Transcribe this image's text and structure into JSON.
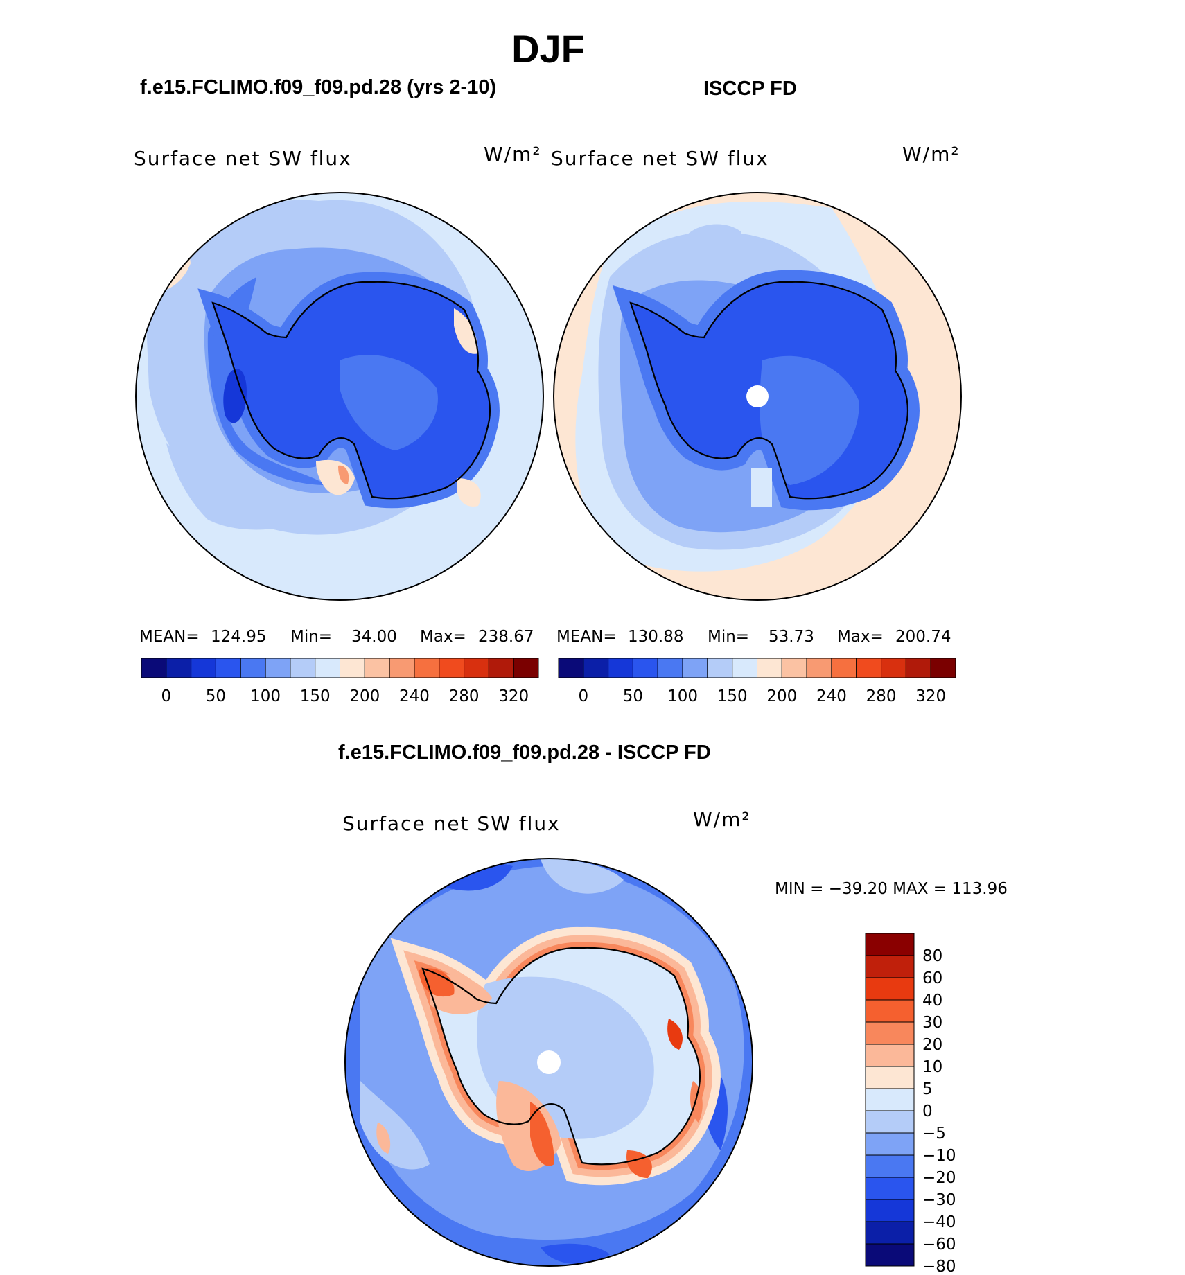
{
  "title": "DJF",
  "panels": [
    {
      "heading": "f.e15.FCLIMO.f09_f09.pd.28 (yrs 2-10)",
      "variable": "Surface net SW flux",
      "units": "W/m²",
      "mean_label": "MEAN=",
      "mean": "124.95",
      "min_label": "Min=",
      "min": "34.00",
      "max_label": "Max=",
      "max": "238.67"
    },
    {
      "heading": "ISCCP FD",
      "variable": "Surface net SW flux",
      "units": "W/m²",
      "mean_label": "MEAN=",
      "mean": "130.88",
      "min_label": "Min=",
      "min": "53.73",
      "max_label": "Max=",
      "max": "200.74"
    }
  ],
  "diff_panel": {
    "heading": "f.e15.FCLIMO.f09_f09.pd.28 - ISCCP FD",
    "variable": "Surface net SW flux",
    "units": "W/m²",
    "minmax": "MIN = −39.20 MAX = 113.96"
  },
  "chart_data": [
    {
      "type": "heatmap",
      "projection": "south-polar-stereographic",
      "title": "Surface net SW flux",
      "case": "f.e15.FCLIMO.f09_f09.pd.28 (yrs 2-10)",
      "units": "W/m2",
      "stats": {
        "mean": 124.95,
        "min": 34.0,
        "max": 238.67
      },
      "colorbar": {
        "orientation": "horizontal",
        "tick_labels": [
          "0",
          "50",
          "100",
          "150",
          "200",
          "240",
          "280",
          "320"
        ]
      }
    },
    {
      "type": "heatmap",
      "projection": "south-polar-stereographic",
      "title": "Surface net SW flux",
      "case": "ISCCP FD",
      "units": "W/m2",
      "stats": {
        "mean": 130.88,
        "min": 53.73,
        "max": 200.74
      },
      "colorbar": {
        "orientation": "horizontal",
        "tick_labels": [
          "0",
          "50",
          "100",
          "150",
          "200",
          "240",
          "280",
          "320"
        ]
      }
    },
    {
      "type": "heatmap",
      "projection": "south-polar-stereographic",
      "title": "Surface net SW flux",
      "case": "f.e15.FCLIMO.f09_f09.pd.28 - ISCCP FD",
      "units": "W/m2",
      "stats": {
        "min": -39.2,
        "max": 113.96
      },
      "colorbar": {
        "orientation": "vertical",
        "tick_labels": [
          "80",
          "60",
          "40",
          "30",
          "20",
          "10",
          "5",
          "0",
          "−5",
          "−10",
          "−20",
          "−30",
          "−40",
          "−60",
          "−80"
        ]
      }
    }
  ],
  "colors": {
    "abs_scale": [
      "#0a0a78",
      "#0b1fa8",
      "#1537d8",
      "#2a55ee",
      "#4a78f2",
      "#7ea3f6",
      "#b4ccf8",
      "#d8e9fc",
      "#fde6d3",
      "#fbc2a3",
      "#f89a72",
      "#f6703f",
      "#f04b1e",
      "#d8300f",
      "#b01a0a",
      "#7a0000"
    ],
    "diff_scale": [
      "#0a0a78",
      "#0b1fa8",
      "#1537d8",
      "#2a55ee",
      "#4a78f2",
      "#7ea3f6",
      "#b4ccf8",
      "#d8e9fc",
      "#fde6d3",
      "#fbb899",
      "#f8875c",
      "#f5602f",
      "#e83a10",
      "#c0200b",
      "#8a0000"
    ]
  }
}
